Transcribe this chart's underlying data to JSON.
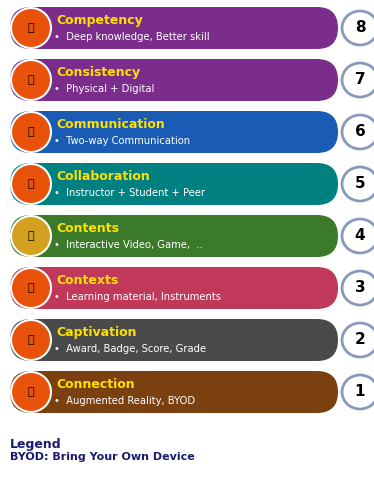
{
  "items": [
    {
      "number": 8,
      "title": "Competency",
      "subtitle": "Deep knowledge, Better skill",
      "bg_color": "#7b2d8b",
      "title_color": "#ffe000",
      "subtitle_color": "#ffffff",
      "icon_bg": "#e8520a"
    },
    {
      "number": 7,
      "title": "Consistency",
      "subtitle": "Physical + Digital",
      "bg_color": "#7b2d8b",
      "title_color": "#ffe000",
      "subtitle_color": "#ffffff",
      "icon_bg": "#e8520a"
    },
    {
      "number": 6,
      "title": "Communication",
      "subtitle": "Two-way Communication",
      "bg_color": "#1a5bb5",
      "title_color": "#ffe000",
      "subtitle_color": "#ffffff",
      "icon_bg": "#e8520a"
    },
    {
      "number": 5,
      "title": "Collaboration",
      "subtitle": "Instructor + Student + Peer",
      "bg_color": "#008080",
      "title_color": "#ffe000",
      "subtitle_color": "#ffffff",
      "icon_bg": "#e8520a"
    },
    {
      "number": 4,
      "title": "Contents",
      "subtitle": "Interactive Video, Game,  ..",
      "bg_color": "#3a7a2a",
      "title_color": "#ffe000",
      "subtitle_color": "#ffffff",
      "icon_bg": "#d4a020"
    },
    {
      "number": 3,
      "title": "Contexts",
      "subtitle": "Learning material, Instruments",
      "bg_color": "#c0395a",
      "title_color": "#ffe000",
      "subtitle_color": "#ffffff",
      "icon_bg": "#e8520a"
    },
    {
      "number": 2,
      "title": "Captivation",
      "subtitle": "Award, Badge, Score, Grade",
      "bg_color": "#4a4a4a",
      "title_color": "#ffe000",
      "subtitle_color": "#ffffff",
      "icon_bg": "#e8520a"
    },
    {
      "number": 1,
      "title": "Connection",
      "subtitle": "Augmented Reality, BYOD",
      "bg_color": "#7a4010",
      "title_color": "#ffe000",
      "subtitle_color": "#ffffff",
      "icon_bg": "#e8520a"
    }
  ],
  "legend_title": "Legend",
  "legend_text": "BYOD: Bring Your Own Device",
  "bg_color": "#ffffff"
}
